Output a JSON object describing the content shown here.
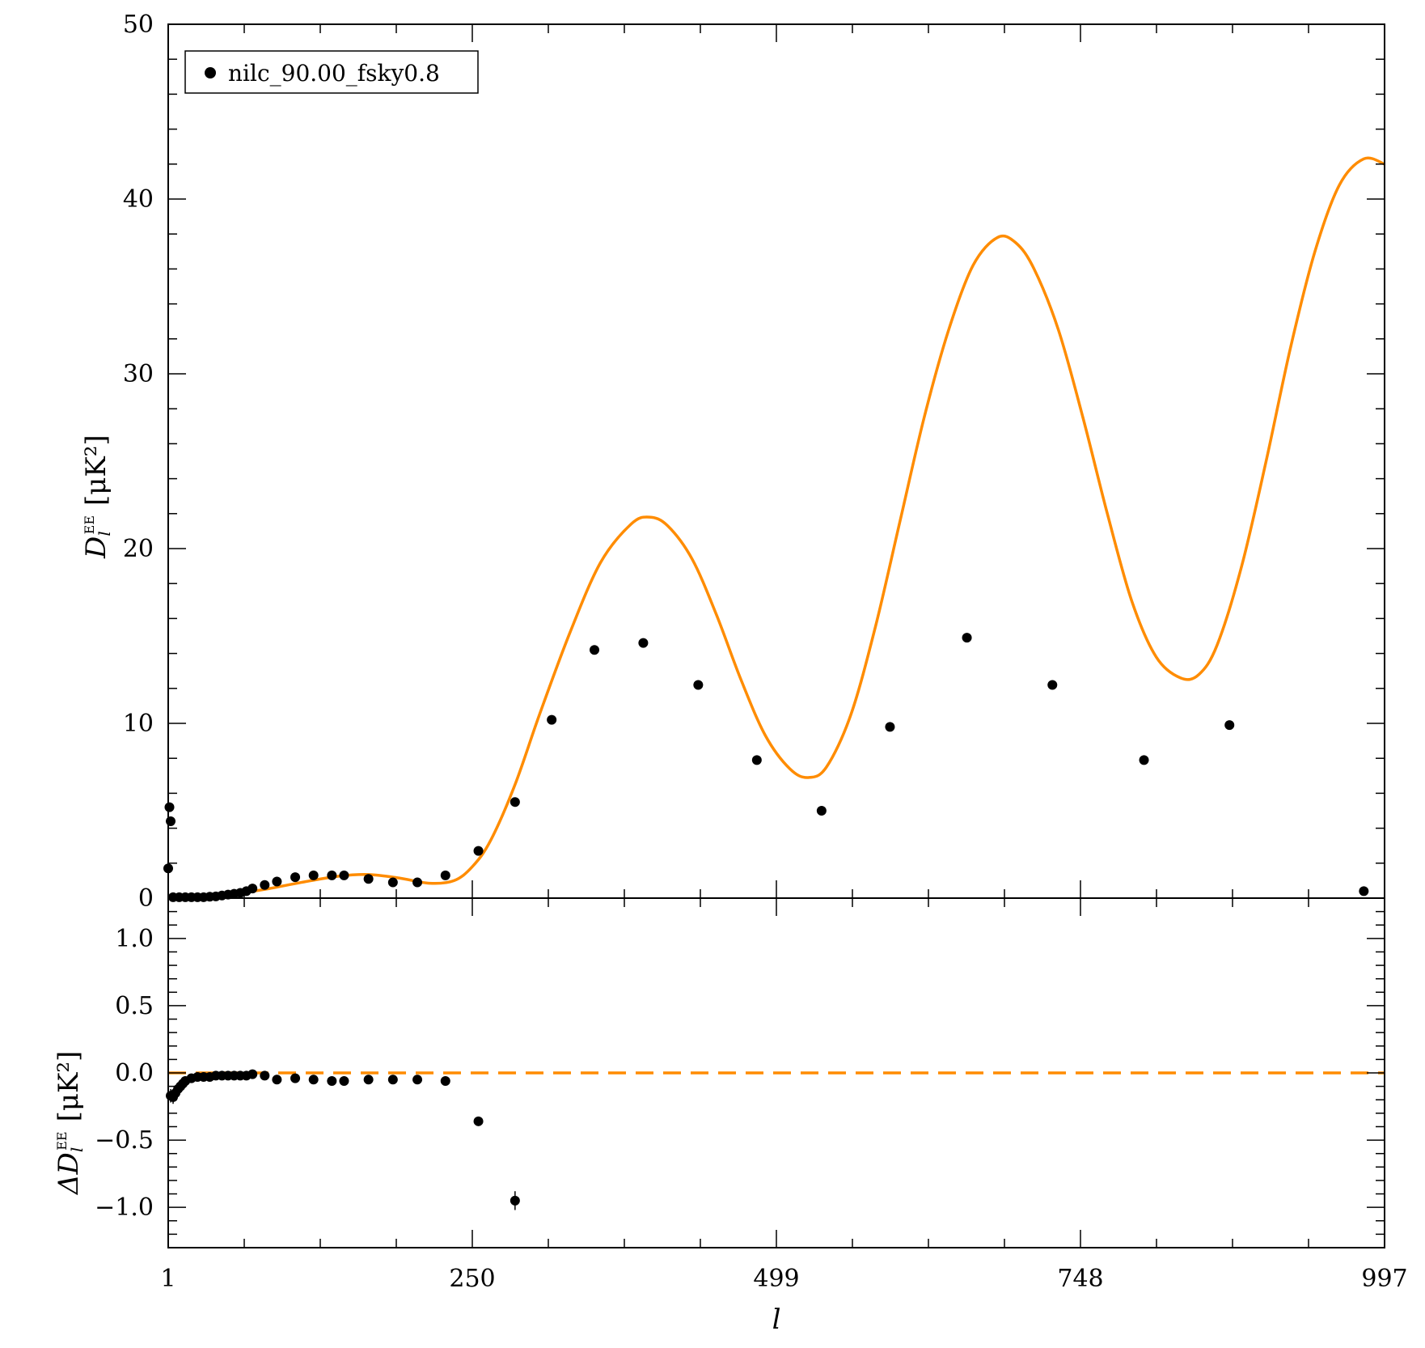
{
  "chart_data": [
    {
      "type": "scatter",
      "panel": "top",
      "ylabel": "D_l^EE [μK²]",
      "ylabel_parts": {
        "sym": "D",
        "sub": "l",
        "sup": "EE",
        "unit": "[μK²]"
      },
      "xlabel": "l",
      "xlim": [
        1,
        997
      ],
      "ylim": [
        0,
        50
      ],
      "x_ticks": [
        "1",
        "250",
        "499",
        "748",
        "997"
      ],
      "y_ticks": [
        "0",
        "10",
        "20",
        "30",
        "40",
        "50"
      ],
      "legend": {
        "label": "nilc_90.00_fsky0.8",
        "placement": "top-left"
      },
      "series": [
        {
          "name": "nilc_90.00_fsky0.8",
          "style": "points",
          "color": "#000000",
          "x": [
            1,
            2,
            3,
            5,
            10,
            15,
            20,
            25,
            30,
            35,
            40,
            45,
            50,
            55,
            60,
            65,
            70,
            80,
            90,
            105,
            120,
            135,
            145,
            165,
            185,
            205,
            228,
            255,
            285,
            315,
            350,
            390,
            435,
            483,
            536,
            592,
            655,
            725,
            800,
            870,
            980
          ],
          "y": [
            1.7,
            5.2,
            4.4,
            0.05,
            0.05,
            0.05,
            0.05,
            0.05,
            0.05,
            0.08,
            0.1,
            0.15,
            0.2,
            0.25,
            0.3,
            0.4,
            0.55,
            0.75,
            0.95,
            1.2,
            1.3,
            1.3,
            1.3,
            1.1,
            0.9,
            0.9,
            1.3,
            2.7,
            5.5,
            10.2,
            14.2,
            14.6,
            12.2,
            7.9,
            5.0,
            9.8,
            14.9,
            12.2,
            7.9,
            9.9,
            0.4
          ]
        },
        {
          "name": "",
          "style": "line",
          "color": "#FF8C00",
          "x": [
            1,
            20,
            50,
            80,
            110,
            140,
            165,
            190,
            215,
            235,
            250,
            265,
            285,
            305,
            330,
            355,
            380,
            395,
            410,
            430,
            450,
            470,
            490,
            510,
            525,
            540,
            560,
            580,
            600,
            620,
            640,
            660,
            680,
            695,
            710,
            730,
            750,
            770,
            790,
            810,
            830,
            845,
            860,
            880,
            900,
            920,
            940,
            960,
            980,
            997
          ],
          "y": [
            0,
            0.05,
            0.2,
            0.5,
            0.9,
            1.25,
            1.35,
            1.15,
            0.85,
            1.0,
            1.8,
            3.3,
            6.5,
            10.5,
            15.2,
            19.2,
            21.4,
            21.8,
            21.3,
            19.4,
            16.2,
            12.5,
            9.3,
            7.4,
            6.9,
            7.5,
            10.5,
            15.5,
            21.5,
            27.5,
            32.5,
            36.2,
            37.8,
            37.5,
            36.0,
            32.5,
            27.5,
            22.0,
            17.0,
            13.8,
            12.6,
            12.8,
            14.5,
            19.0,
            25.0,
            31.5,
            37.0,
            40.8,
            42.3,
            42.0
          ]
        }
      ]
    },
    {
      "type": "scatter",
      "panel": "bottom",
      "ylabel": "ΔD_l^EE [μK²]",
      "ylabel_parts": {
        "sym": "ΔD",
        "sub": "l",
        "sup": "EE",
        "unit": "[μK²]"
      },
      "xlabel": "l",
      "xlim": [
        1,
        997
      ],
      "ylim": [
        -1.3,
        1.3
      ],
      "x_ticks": [
        "1",
        "250",
        "499",
        "748",
        "997"
      ],
      "y_ticks": [
        "1.0",
        "0.5",
        "0.0",
        "−0.5",
        "−1.0"
      ],
      "y_tick_values": [
        1.0,
        0.5,
        0.0,
        -0.5,
        -1.0
      ],
      "series": [
        {
          "name": "nilc_90.00_fsky0.8",
          "style": "points",
          "color": "#000000",
          "x": [
            3,
            5,
            7,
            9,
            11,
            13,
            15,
            20,
            25,
            30,
            35,
            40,
            45,
            50,
            55,
            60,
            65,
            70,
            80,
            90,
            105,
            120,
            135,
            145,
            165,
            185,
            205,
            228,
            255,
            285
          ],
          "y": [
            -0.17,
            -0.18,
            -0.15,
            -0.12,
            -0.1,
            -0.08,
            -0.06,
            -0.04,
            -0.03,
            -0.03,
            -0.03,
            -0.02,
            -0.02,
            -0.02,
            -0.02,
            -0.02,
            -0.02,
            -0.01,
            -0.02,
            -0.05,
            -0.04,
            -0.05,
            -0.06,
            -0.06,
            -0.05,
            -0.05,
            -0.05,
            -0.06,
            -0.36,
            -0.95
          ],
          "yerr": [
            0.05,
            0.05,
            0.04,
            0.03,
            0.02,
            0.02,
            0.01,
            0.01,
            0.01,
            0.01,
            0.01,
            0.01,
            0.01,
            0.01,
            0.01,
            0.01,
            0.01,
            0.01,
            0.01,
            0.01,
            0.01,
            0.01,
            0.01,
            0.01,
            0.01,
            0.01,
            0.01,
            0.01,
            0.02,
            0.07
          ]
        },
        {
          "name": "",
          "style": "dashed-line",
          "color": "#FF8C00",
          "x": [
            1,
            997
          ],
          "y": [
            0,
            0
          ]
        }
      ]
    }
  ]
}
